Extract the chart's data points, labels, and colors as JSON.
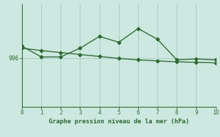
{
  "line1_x": [
    0,
    1,
    2,
    3,
    4,
    5,
    6,
    7,
    8,
    9,
    10
  ],
  "line1_y": [
    997.2,
    996.1,
    996.1,
    997.0,
    998.2,
    997.6,
    999.0,
    997.9,
    995.8,
    995.9,
    995.8
  ],
  "line2_x": [
    0,
    1,
    2,
    3,
    4,
    5,
    6,
    7,
    8,
    9,
    10
  ],
  "line2_y": [
    997.0,
    996.75,
    996.55,
    996.35,
    996.15,
    995.95,
    995.8,
    995.7,
    995.6,
    995.55,
    995.5
  ],
  "line_color": "#2d6a2d",
  "bg_color": "#cce8e0",
  "grid_color": "#aaccc4",
  "ytick_labels": [
    "996"
  ],
  "ytick_values": [
    996
  ],
  "xlabel": "Graphe pression niveau de la mer (hPa)",
  "xlim": [
    0,
    10
  ],
  "ylim": [
    991.0,
    1001.5
  ],
  "marker": "D",
  "marker_size": 2.5,
  "line_width": 1.0
}
